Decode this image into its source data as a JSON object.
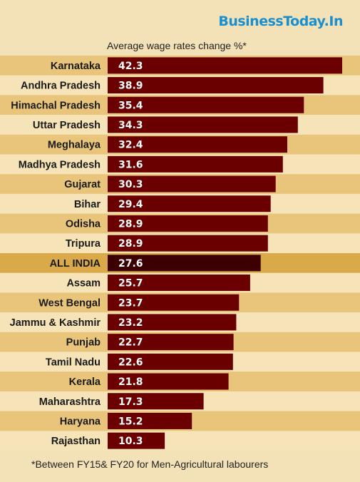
{
  "brand": "BusinessToday.In",
  "footnote": "*Between FY15& FY20 for Men-Agricultural labourers",
  "colors": {
    "background": "#f3e2b7",
    "stripe_dark": "#e9c57b",
    "stripe_light": "#f6e4b8",
    "bar": "#6b0000",
    "bar_highlight": "#3d0000",
    "highlight_row": "#d9a94a",
    "brand": "#1a8fd0"
  },
  "chart_data": {
    "type": "bar",
    "orientation": "horizontal",
    "title": "Average wage rates change %*",
    "categories": [
      "Karnataka",
      "Andhra Pradesh",
      "Himachal Pradesh",
      "Uttar Pradesh",
      "Meghalaya",
      "Madhya Pradesh",
      "Gujarat",
      "Bihar",
      "Odisha",
      "Tripura",
      "ALL INDIA",
      "Assam",
      "West Bengal",
      "Jammu & Kashmir",
      "Punjab",
      "Tamil Nadu",
      "Kerala",
      "Maharashtra",
      "Haryana",
      "Rajasthan"
    ],
    "values": [
      42.3,
      38.9,
      35.4,
      34.3,
      32.4,
      31.6,
      30.3,
      29.4,
      28.9,
      28.9,
      27.6,
      25.7,
      23.7,
      23.2,
      22.7,
      22.6,
      21.8,
      17.3,
      15.2,
      10.3
    ],
    "value_labels": [
      "42.3",
      "38.9",
      "35.4",
      "34.3",
      "32.4",
      "31.6",
      "30.3",
      "29.4",
      "28.9",
      "28.9",
      "27.6",
      "25.7",
      "23.7",
      "23.2",
      "22.7",
      "22.6",
      "21.8",
      "17.3",
      "15.2",
      "10.3"
    ],
    "highlight": "ALL INDIA",
    "xlim": [
      0,
      42.3
    ],
    "grid": false,
    "legend": "none"
  }
}
